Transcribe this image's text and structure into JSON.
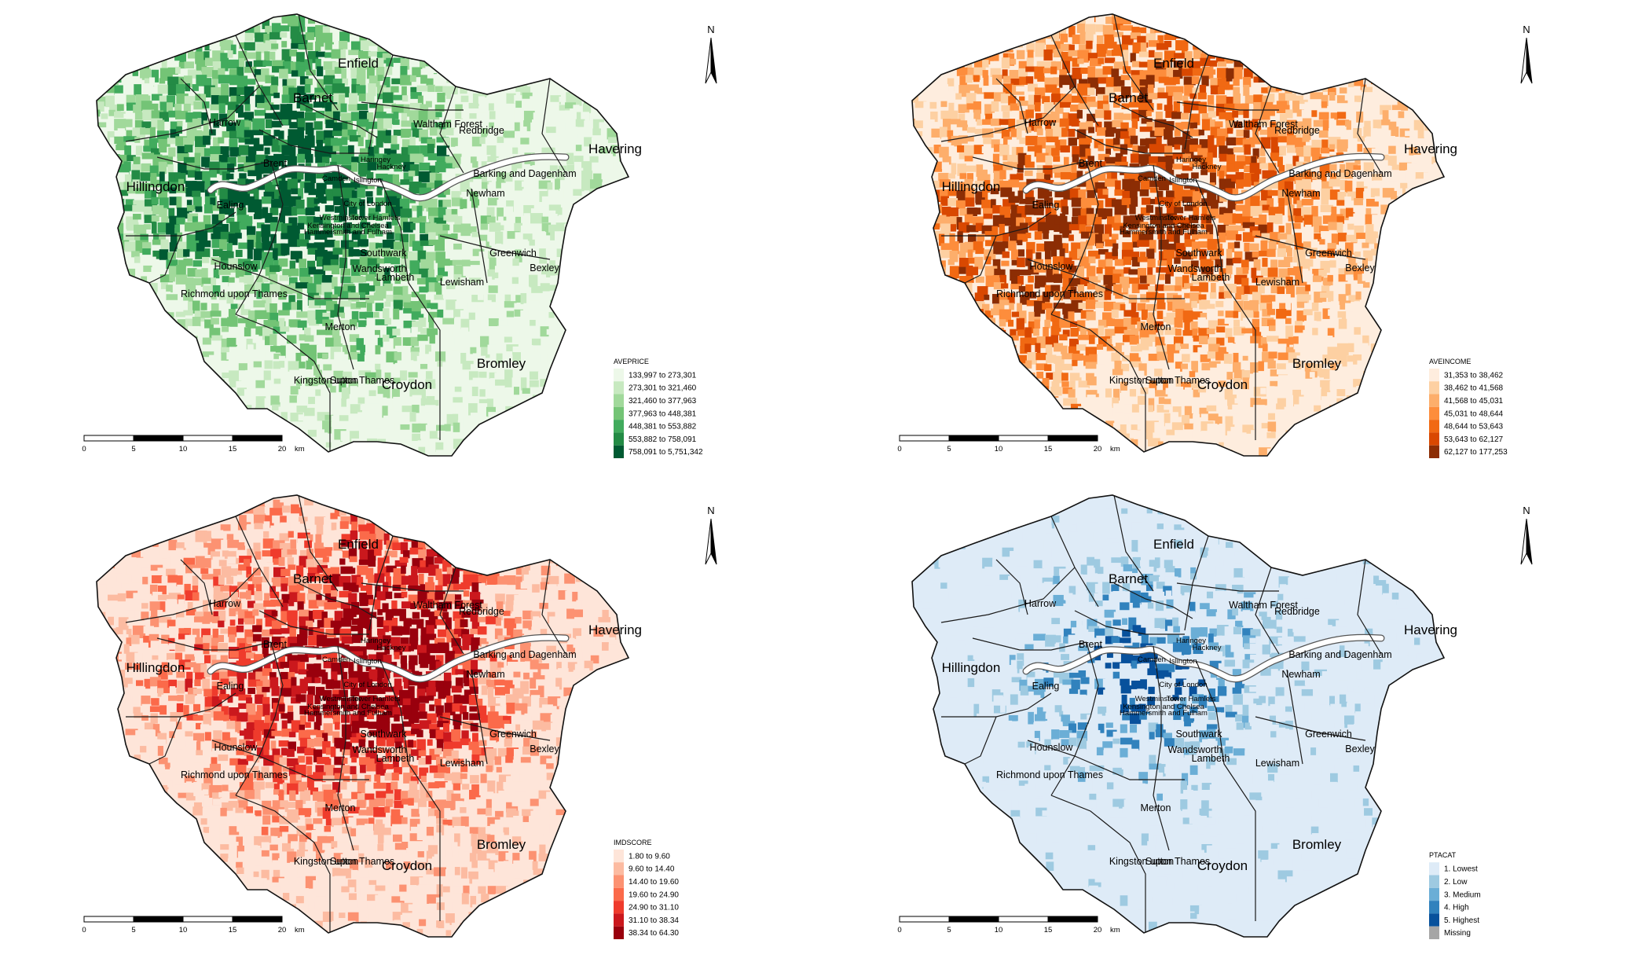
{
  "boroughs": [
    {
      "name": "Enfield",
      "size": "large"
    },
    {
      "name": "Barnet",
      "size": "large"
    },
    {
      "name": "Harrow",
      "size": "medium"
    },
    {
      "name": "Haringey",
      "size": "small"
    },
    {
      "name": "Waltham Forest",
      "size": "medium"
    },
    {
      "name": "Redbridge",
      "size": "medium"
    },
    {
      "name": "Havering",
      "size": "large"
    },
    {
      "name": "Brent",
      "size": "medium"
    },
    {
      "name": "Hillingdon",
      "size": "large"
    },
    {
      "name": "Camden",
      "size": "small"
    },
    {
      "name": "Islington",
      "size": "small"
    },
    {
      "name": "Hackney",
      "size": "small"
    },
    {
      "name": "Barking and Dagenham",
      "size": "medium"
    },
    {
      "name": "Newham",
      "size": "medium"
    },
    {
      "name": "Ealing",
      "size": "medium"
    },
    {
      "name": "Westminster",
      "size": "small"
    },
    {
      "name": "Tower Hamlets",
      "size": "small"
    },
    {
      "name": "City of London",
      "size": "small"
    },
    {
      "name": "Kensington and Chelsea",
      "size": "small"
    },
    {
      "name": "Hammersmith and Fulham",
      "size": "small"
    },
    {
      "name": "Southwark",
      "size": "medium"
    },
    {
      "name": "Greenwich",
      "size": "medium"
    },
    {
      "name": "Hounslow",
      "size": "medium"
    },
    {
      "name": "Bexley",
      "size": "medium"
    },
    {
      "name": "Wandsworth",
      "size": "medium"
    },
    {
      "name": "Lambeth",
      "size": "medium"
    },
    {
      "name": "Lewisham",
      "size": "medium"
    },
    {
      "name": "Richmond upon Thames",
      "size": "medium"
    },
    {
      "name": "Merton",
      "size": "medium"
    },
    {
      "name": "Kingston upon Thames",
      "size": "medium"
    },
    {
      "name": "Bromley",
      "size": "large"
    },
    {
      "name": "Sutton",
      "size": "medium"
    },
    {
      "name": "Croydon",
      "size": "large"
    }
  ],
  "north_label": "N",
  "scale_bar": {
    "ticks": [
      "0",
      "5",
      "10",
      "15",
      "20"
    ],
    "unit": "km"
  },
  "maps": [
    {
      "id": "aveprice",
      "legend_title": "AVEPRICE",
      "classes": [
        {
          "label": "133,997 to 273,301",
          "color": "#edf8e9"
        },
        {
          "label": "273,301 to 321,460",
          "color": "#c7e9c0"
        },
        {
          "label": "321,460 to 377,963",
          "color": "#a1d99b"
        },
        {
          "label": "377,963 to 448,381",
          "color": "#74c476"
        },
        {
          "label": "448,381 to 553,882",
          "color": "#41ab5d"
        },
        {
          "label": "553,882 to 758,091",
          "color": "#238b45"
        },
        {
          "label": "758,091 to 5,751,342",
          "color": "#005a32"
        }
      ]
    },
    {
      "id": "aveincome",
      "legend_title": "AVEINCOME",
      "classes": [
        {
          "label": "31,353 to 38,462",
          "color": "#feedde"
        },
        {
          "label": "38,462 to 41,568",
          "color": "#fdd0a2"
        },
        {
          "label": "41,568 to 45,031",
          "color": "#fdae6b"
        },
        {
          "label": "45,031 to 48,644",
          "color": "#fd8d3c"
        },
        {
          "label": "48,644 to 53,643",
          "color": "#f16913"
        },
        {
          "label": "53,643 to 62,127",
          "color": "#d94801"
        },
        {
          "label": "62,127 to 177,253",
          "color": "#8c2d04"
        }
      ]
    },
    {
      "id": "imdscore",
      "legend_title": "IMDSCORE",
      "classes": [
        {
          "label": "1.80 to 9.60",
          "color": "#fee5d9"
        },
        {
          "label": "9.60 to 14.40",
          "color": "#fcbba1"
        },
        {
          "label": "14.40 to 19.60",
          "color": "#fc9272"
        },
        {
          "label": "19.60 to 24.90",
          "color": "#fb6a4a"
        },
        {
          "label": "24.90 to 31.10",
          "color": "#ef3b2c"
        },
        {
          "label": "31.10 to 38.34",
          "color": "#cb181d"
        },
        {
          "label": "38.34 to 64.30",
          "color": "#99000d"
        }
      ]
    },
    {
      "id": "ptacat",
      "legend_title": "PTACAT",
      "classes": [
        {
          "label": "1. Lowest",
          "color": "#deebf7"
        },
        {
          "label": "2. Low",
          "color": "#9ecae1"
        },
        {
          "label": "3. Medium",
          "color": "#6baed6"
        },
        {
          "label": "4. High",
          "color": "#3182bd"
        },
        {
          "label": "5. Highest",
          "color": "#08519c"
        },
        {
          "label": "Missing",
          "color": "#a6a6a6"
        }
      ]
    }
  ]
}
